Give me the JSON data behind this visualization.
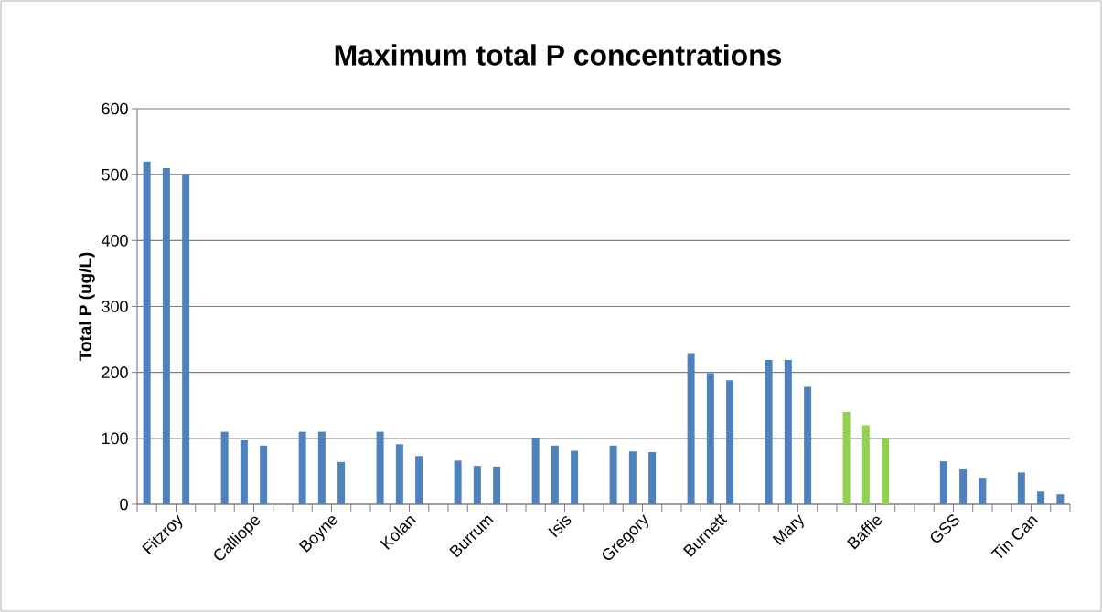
{
  "chart_data": {
    "type": "bar",
    "title": "Maximum total P concentrations",
    "ylabel": "Total P (ug/L)",
    "categories": [
      null,
      "Fitzroy",
      null,
      null,
      null,
      "Calliope",
      null,
      null,
      null,
      "Boyne",
      null,
      null,
      null,
      "Kolan",
      null,
      null,
      null,
      "Burrum",
      null,
      null,
      null,
      "Isis",
      null,
      null,
      null,
      "Gregory",
      null,
      null,
      null,
      "Burnett",
      null,
      null,
      null,
      "Mary",
      null,
      null,
      null,
      "Baffle",
      null,
      null,
      null,
      "GSS",
      null,
      null,
      null,
      "Tin Can",
      null,
      null
    ],
    "values": [
      520,
      510,
      500,
      null,
      110,
      97,
      89,
      null,
      110,
      110,
      64,
      null,
      110,
      91,
      73,
      null,
      66,
      58,
      57,
      null,
      100,
      89,
      81,
      null,
      89,
      80,
      79,
      null,
      228,
      199,
      188,
      null,
      219,
      219,
      178,
      null,
      140,
      120,
      100,
      null,
      null,
      65,
      54,
      40,
      null,
      48,
      19,
      15
    ],
    "colors": [
      "#4f81bd",
      "#4f81bd",
      "#4f81bd",
      null,
      "#4f81bd",
      "#4f81bd",
      "#4f81bd",
      null,
      "#4f81bd",
      "#4f81bd",
      "#4f81bd",
      null,
      "#4f81bd",
      "#4f81bd",
      "#4f81bd",
      null,
      "#4f81bd",
      "#4f81bd",
      "#4f81bd",
      null,
      "#4f81bd",
      "#4f81bd",
      "#4f81bd",
      null,
      "#4f81bd",
      "#4f81bd",
      "#4f81bd",
      null,
      "#4f81bd",
      "#4f81bd",
      "#4f81bd",
      null,
      "#4f81bd",
      "#4f81bd",
      "#4f81bd",
      null,
      "#92d050",
      "#92d050",
      "#92d050",
      null,
      null,
      "#4f81bd",
      "#4f81bd",
      "#4f81bd",
      null,
      "#4f81bd",
      "#4f81bd",
      "#4f81bd"
    ],
    "ylim": [
      0,
      600
    ],
    "yticks": [
      0,
      100,
      200,
      300,
      400,
      500,
      600
    ],
    "grid": "y"
  }
}
